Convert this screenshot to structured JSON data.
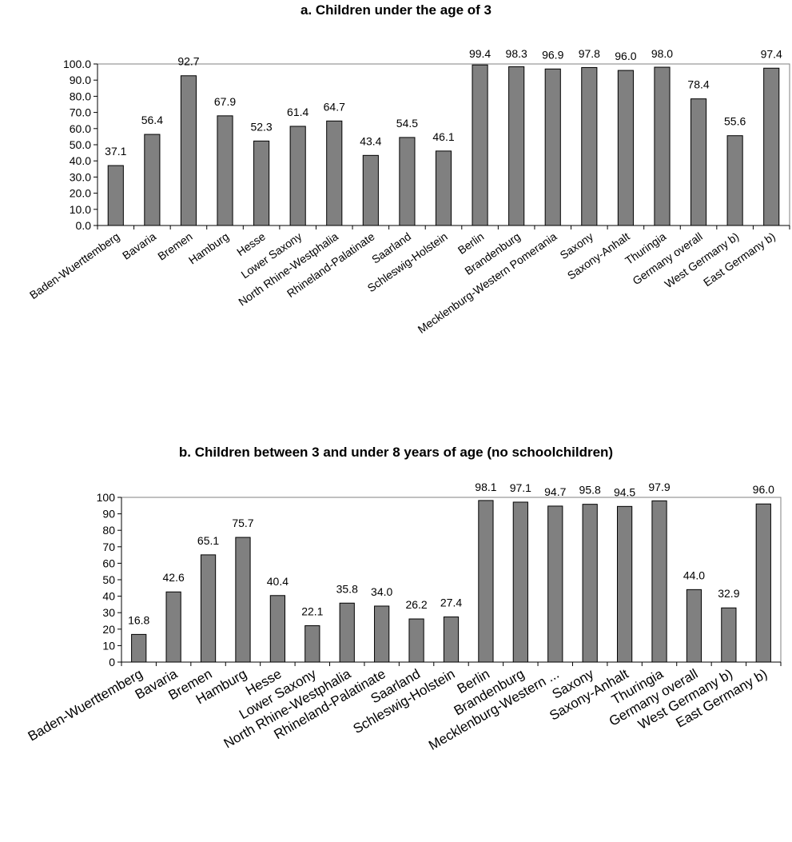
{
  "chart_data": [
    {
      "type": "bar",
      "title": "a. Children under the age of 3",
      "categories": [
        "Baden-Wuerttemberg",
        "Bavaria",
        "Bremen",
        "Hamburg",
        "Hesse",
        "Lower Saxony",
        "North Rhine-Westphalia",
        "Rhineland-Palatinate",
        "Saarland",
        "Schleswig-Holstein",
        "Berlin",
        "Brandenburg",
        "Mecklenburg-Western Pomerania",
        "Saxony",
        "Saxony-Anhalt",
        "Thuringia",
        "Germany overall",
        "West Germany b)",
        "East Germany b)"
      ],
      "values": [
        37.1,
        56.4,
        92.7,
        67.9,
        52.3,
        61.4,
        64.7,
        43.4,
        54.5,
        46.1,
        99.4,
        98.3,
        96.9,
        97.8,
        96.0,
        98.0,
        78.4,
        55.6,
        97.4
      ],
      "value_labels": [
        "37.1",
        "56.4",
        "92.7",
        "67.9",
        "52.3",
        "61.4",
        "64.7",
        "43.4",
        "54.5",
        "46.1",
        "99.4",
        "98.3",
        "96.9",
        "97.8",
        "96.0",
        "98.0",
        "78.4",
        "55.6",
        "97.4"
      ],
      "ylim": [
        0,
        100
      ],
      "yticks": [
        "0.0",
        "10.0",
        "20.0",
        "30.0",
        "40.0",
        "50.0",
        "60.0",
        "70.0",
        "80.0",
        "90.0",
        "100.0"
      ],
      "grid": false,
      "bar_color": "#808080"
    },
    {
      "type": "bar",
      "title": "b. Children between 3 and under 8 years of age (no schoolchildren)",
      "categories": [
        "Baden-Wuerttemberg",
        "Bavaria",
        "Bremen",
        "Hamburg",
        "Hesse",
        "Lower Saxony",
        "North Rhine-Westphalia",
        "Rhineland-Palatinate",
        "Saarland",
        "Schleswig-Holstein",
        "Berlin",
        "Brandenburg",
        "Mecklenburg-Western ...",
        "Saxony",
        "Saxony-Anhalt",
        "Thuringia",
        "Germany overall",
        "West Germany b)",
        "East Germany b)"
      ],
      "values": [
        16.8,
        42.6,
        65.1,
        75.7,
        40.4,
        22.1,
        35.8,
        34.0,
        26.2,
        27.4,
        98.1,
        97.1,
        94.7,
        95.8,
        94.5,
        97.9,
        44.0,
        32.9,
        96.0
      ],
      "value_labels": [
        "16.8",
        "42.6",
        "65.1",
        "75.7",
        "40.4",
        "22.1",
        "35.8",
        "34.0",
        "26.2",
        "27.4",
        "98.1",
        "97.1",
        "94.7",
        "95.8",
        "94.5",
        "97.9",
        "44.0",
        "32.9",
        "96.0"
      ],
      "ylim": [
        0,
        100
      ],
      "yticks": [
        "0",
        "10",
        "20",
        "30",
        "40",
        "50",
        "60",
        "70",
        "80",
        "90",
        "100"
      ],
      "grid": false,
      "bar_color": "#808080"
    }
  ]
}
